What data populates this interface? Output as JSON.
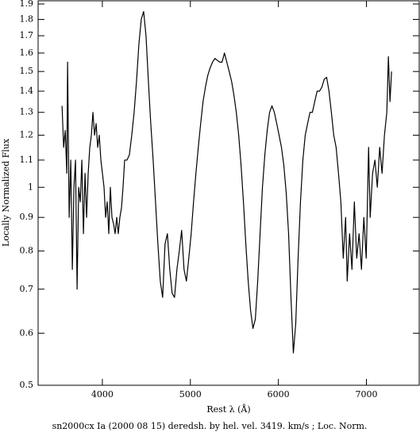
{
  "chart_data": {
    "type": "line",
    "x_label": "Rest λ (Å)",
    "y_label": "Locally Normalized Flux",
    "caption": "sn2000cx Ia (2000 08 15) deredsh. by hel. vel.  3419. km/s ;  Loc. Norm.",
    "log_y": true,
    "xlim": [
      3270,
      7600
    ],
    "ylim": [
      0.5,
      1.9
    ],
    "xticks": [
      4000,
      5000,
      6000,
      7000
    ],
    "yticks": [
      0.5,
      0.6,
      0.7,
      0.8,
      0.9,
      1,
      1.1,
      1.2,
      1.3,
      1.4,
      1.5,
      1.6,
      1.7,
      1.8,
      1.9
    ],
    "color": "#000000",
    "x": [
      3542,
      3560,
      3578,
      3596,
      3605,
      3623,
      3641,
      3659,
      3677,
      3695,
      3713,
      3731,
      3749,
      3767,
      3785,
      3803,
      3821,
      3839,
      3857,
      3875,
      3893,
      3911,
      3929,
      3947,
      3965,
      3983,
      4001,
      4019,
      4037,
      4055,
      4073,
      4091,
      4109,
      4127,
      4145,
      4163,
      4181,
      4199,
      4217,
      4235,
      4253,
      4280,
      4307,
      4334,
      4361,
      4388,
      4415,
      4442,
      4469,
      4496,
      4523,
      4550,
      4577,
      4604,
      4631,
      4658,
      4685,
      4712,
      4739,
      4766,
      4793,
      4820,
      4847,
      4874,
      4901,
      4928,
      4955,
      4982,
      5009,
      5036,
      5063,
      5090,
      5117,
      5144,
      5171,
      5198,
      5225,
      5252,
      5279,
      5306,
      5333,
      5360,
      5387,
      5414,
      5441,
      5468,
      5495,
      5522,
      5549,
      5576,
      5603,
      5630,
      5657,
      5684,
      5711,
      5738,
      5765,
      5792,
      5819,
      5846,
      5873,
      5900,
      5927,
      5954,
      5981,
      6008,
      6035,
      6062,
      6089,
      6116,
      6143,
      6170,
      6197,
      6224,
      6251,
      6278,
      6305,
      6332,
      6359,
      6386,
      6413,
      6440,
      6467,
      6494,
      6521,
      6548,
      6575,
      6602,
      6629,
      6656,
      6683,
      6710,
      6737,
      6764,
      6782,
      6809,
      6836,
      6863,
      6890,
      6917,
      6944,
      6971,
      6998,
      7025,
      7043,
      7070,
      7097,
      7124,
      7151,
      7178,
      7205,
      7232,
      7250,
      7268,
      7286
    ],
    "values": [
      1.33,
      1.15,
      1.22,
      1.05,
      1.55,
      0.9,
      1.1,
      0.75,
      1.0,
      1.1,
      0.7,
      1.0,
      0.95,
      1.1,
      0.85,
      1.05,
      0.9,
      1.05,
      1.15,
      1.2,
      1.3,
      1.2,
      1.25,
      1.15,
      1.2,
      1.1,
      1.05,
      1.0,
      0.9,
      0.95,
      0.85,
      1.0,
      0.9,
      0.88,
      0.85,
      0.9,
      0.85,
      0.9,
      0.93,
      1.0,
      1.1,
      1.1,
      1.12,
      1.2,
      1.3,
      1.45,
      1.65,
      1.8,
      1.85,
      1.7,
      1.45,
      1.25,
      1.1,
      0.95,
      0.82,
      0.72,
      0.68,
      0.82,
      0.85,
      0.75,
      0.69,
      0.68,
      0.75,
      0.8,
      0.86,
      0.75,
      0.72,
      0.78,
      0.85,
      0.95,
      1.05,
      1.15,
      1.25,
      1.35,
      1.42,
      1.48,
      1.52,
      1.55,
      1.57,
      1.56,
      1.55,
      1.55,
      1.6,
      1.55,
      1.5,
      1.45,
      1.38,
      1.3,
      1.2,
      1.08,
      0.95,
      0.82,
      0.72,
      0.65,
      0.61,
      0.63,
      0.72,
      0.85,
      1.0,
      1.12,
      1.22,
      1.3,
      1.33,
      1.3,
      1.25,
      1.2,
      1.15,
      1.08,
      0.98,
      0.85,
      0.68,
      0.56,
      0.62,
      0.78,
      0.95,
      1.1,
      1.2,
      1.25,
      1.3,
      1.3,
      1.35,
      1.4,
      1.4,
      1.42,
      1.46,
      1.47,
      1.4,
      1.3,
      1.2,
      1.15,
      1.05,
      0.95,
      0.78,
      0.9,
      0.72,
      0.85,
      0.75,
      0.95,
      0.78,
      0.85,
      0.75,
      0.9,
      0.78,
      1.15,
      0.9,
      1.05,
      1.1,
      1.0,
      1.15,
      1.05,
      1.2,
      1.3,
      1.58,
      1.35,
      1.5
    ]
  }
}
